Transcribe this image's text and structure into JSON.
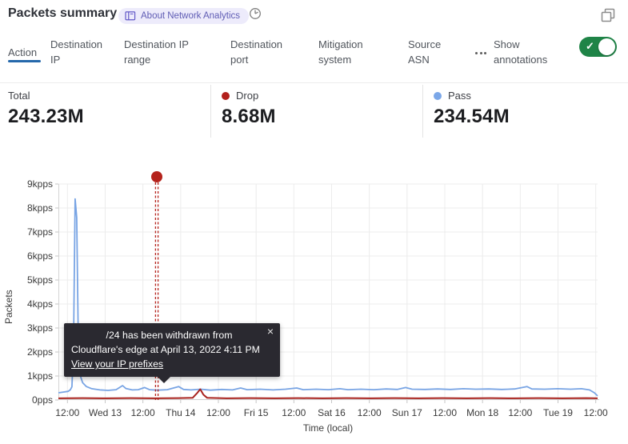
{
  "header": {
    "title": "Packets summary",
    "about_badge": {
      "icon": "book-icon",
      "label": "About Network Analytics"
    },
    "time_icon": "clock-icon",
    "popout_icon": "popout-window-icon"
  },
  "tabs": {
    "items": [
      {
        "label": "Action",
        "active": true
      },
      {
        "label": "Destination IP",
        "active": false
      },
      {
        "label": "Destination IP range",
        "active": false
      },
      {
        "label": "Destination port",
        "active": false
      },
      {
        "label": "Mitigation system",
        "active": false
      },
      {
        "label": "Source ASN",
        "active": false
      }
    ],
    "more_icon": "ellipsis-icon",
    "annotations_toggle": {
      "label": "Show annotations",
      "state": "on",
      "color": "#1f8447",
      "check_glyph": "✓"
    }
  },
  "stats": {
    "items": [
      {
        "label": "Total",
        "value": "243.23M",
        "dot_color": ""
      },
      {
        "label": "Drop",
        "value": "8.68M",
        "dot_color": "#b2201c"
      },
      {
        "label": "Pass",
        "value": "234.54M",
        "dot_color": "#7ba7e8"
      }
    ]
  },
  "chart_data": {
    "type": "line",
    "title": "Packets summary",
    "ylabel": "Packets",
    "xlabel": "Time (local)",
    "ylim": [
      0,
      9
    ],
    "y_unit": "kpps",
    "grid": true,
    "y_ticks": [
      "9kpps",
      "8kpps",
      "7kpps",
      "6kpps",
      "5kpps",
      "4kpps",
      "3kpps",
      "2kpps",
      "1kpps",
      "0pps"
    ],
    "x_ticks": [
      "12:00",
      "Wed 13",
      "12:00",
      "Thu 14",
      "12:00",
      "Fri 15",
      "12:00",
      "Sat 16",
      "12:00",
      "Sun 17",
      "12:00",
      "Mon 18",
      "12:00",
      "Tue 19",
      "12:00"
    ],
    "x_range_note": "Apr 12 to Apr 19 2022, ticks every 12 hours",
    "series": [
      {
        "name": "Pass",
        "color": "#78a4e4",
        "stroke_width": 1.8,
        "points": [
          [
            0,
            0.3
          ],
          [
            0.009,
            0.33
          ],
          [
            0.018,
            0.36
          ],
          [
            0.022,
            0.42
          ],
          [
            0.025,
            0.55
          ],
          [
            0.028,
            2.2
          ],
          [
            0.031,
            8.38
          ],
          [
            0.034,
            7.6
          ],
          [
            0.037,
            2.4
          ],
          [
            0.04,
            1.05
          ],
          [
            0.045,
            0.72
          ],
          [
            0.052,
            0.56
          ],
          [
            0.062,
            0.47
          ],
          [
            0.077,
            0.42
          ],
          [
            0.092,
            0.4
          ],
          [
            0.107,
            0.43
          ],
          [
            0.119,
            0.6
          ],
          [
            0.125,
            0.48
          ],
          [
            0.137,
            0.42
          ],
          [
            0.148,
            0.43
          ],
          [
            0.16,
            0.52
          ],
          [
            0.169,
            0.43
          ],
          [
            0.184,
            0.41
          ],
          [
            0.202,
            0.43
          ],
          [
            0.223,
            0.56
          ],
          [
            0.232,
            0.44
          ],
          [
            0.246,
            0.42
          ],
          [
            0.264,
            0.45
          ],
          [
            0.282,
            0.41
          ],
          [
            0.303,
            0.44
          ],
          [
            0.323,
            0.42
          ],
          [
            0.338,
            0.5
          ],
          [
            0.35,
            0.43
          ],
          [
            0.374,
            0.45
          ],
          [
            0.398,
            0.42
          ],
          [
            0.421,
            0.45
          ],
          [
            0.442,
            0.5
          ],
          [
            0.454,
            0.43
          ],
          [
            0.478,
            0.45
          ],
          [
            0.501,
            0.43
          ],
          [
            0.522,
            0.47
          ],
          [
            0.537,
            0.43
          ],
          [
            0.561,
            0.45
          ],
          [
            0.585,
            0.43
          ],
          [
            0.608,
            0.46
          ],
          [
            0.629,
            0.44
          ],
          [
            0.644,
            0.52
          ],
          [
            0.656,
            0.45
          ],
          [
            0.68,
            0.44
          ],
          [
            0.703,
            0.46
          ],
          [
            0.727,
            0.44
          ],
          [
            0.751,
            0.47
          ],
          [
            0.774,
            0.45
          ],
          [
            0.798,
            0.46
          ],
          [
            0.822,
            0.44
          ],
          [
            0.846,
            0.46
          ],
          [
            0.869,
            0.56
          ],
          [
            0.878,
            0.46
          ],
          [
            0.902,
            0.45
          ],
          [
            0.926,
            0.47
          ],
          [
            0.95,
            0.45
          ],
          [
            0.97,
            0.47
          ],
          [
            0.985,
            0.42
          ],
          [
            0.994,
            0.3
          ],
          [
            1,
            0.17
          ]
        ]
      },
      {
        "name": "Drop",
        "color": "#a8231e",
        "stroke_width": 2,
        "points": [
          [
            0,
            0.07
          ],
          [
            0.045,
            0.08
          ],
          [
            0.089,
            0.07
          ],
          [
            0.134,
            0.08
          ],
          [
            0.178,
            0.07
          ],
          [
            0.223,
            0.08
          ],
          [
            0.249,
            0.09
          ],
          [
            0.257,
            0.28
          ],
          [
            0.263,
            0.45
          ],
          [
            0.269,
            0.22
          ],
          [
            0.276,
            0.09
          ],
          [
            0.312,
            0.07
          ],
          [
            0.356,
            0.08
          ],
          [
            0.401,
            0.07
          ],
          [
            0.445,
            0.08
          ],
          [
            0.49,
            0.07
          ],
          [
            0.534,
            0.08
          ],
          [
            0.579,
            0.07
          ],
          [
            0.623,
            0.08
          ],
          [
            0.668,
            0.07
          ],
          [
            0.712,
            0.08
          ],
          [
            0.757,
            0.07
          ],
          [
            0.801,
            0.08
          ],
          [
            0.846,
            0.07
          ],
          [
            0.89,
            0.08
          ],
          [
            0.935,
            0.07
          ],
          [
            0.979,
            0.08
          ],
          [
            1,
            0.07
          ]
        ]
      }
    ],
    "annotation": {
      "x_frac": 0.1825,
      "color": "#b5231c",
      "marker": "red-dot-with-double-dashed-vertical-line",
      "tooltip": {
        "line1": "/24 has been withdrawn from",
        "line2": "Cloudflare's edge at April 13, 2022 4:11 PM",
        "link": "View your IP prefixes",
        "close_icon": "×"
      }
    }
  }
}
